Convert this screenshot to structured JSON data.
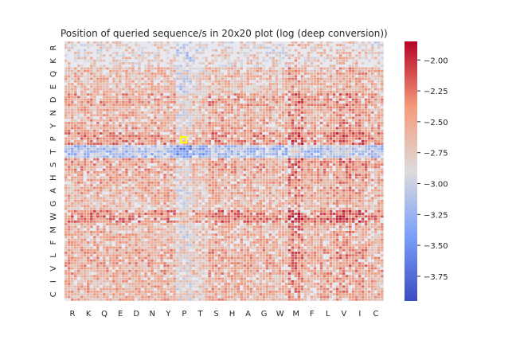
{
  "chart_data": {
    "type": "heatmap",
    "title": "Position of queried sequence/s in 20x20 plot (log (deep conversion))",
    "x_categories": [
      "R",
      "K",
      "Q",
      "E",
      "D",
      "N",
      "Y",
      "P",
      "T",
      "S",
      "H",
      "A",
      "G",
      "W",
      "M",
      "F",
      "L",
      "V",
      "I",
      "C"
    ],
    "y_categories": [
      "R",
      "K",
      "Q",
      "E",
      "D",
      "N",
      "Y",
      "P",
      "T",
      "S",
      "H",
      "A",
      "G",
      "W",
      "M",
      "F",
      "L",
      "V",
      "I",
      "C"
    ],
    "colorbar": {
      "colormap": "coolwarm",
      "range": [
        -3.95,
        -1.85
      ],
      "ticks": [
        -2.0,
        -2.25,
        -2.5,
        -2.75,
        -3.0,
        -3.25,
        -3.5,
        -3.75
      ],
      "tick_labels": [
        "−2.00",
        "−2.25",
        "−2.50",
        "−2.75",
        "−3.00",
        "−3.25",
        "−3.50",
        "−3.75"
      ]
    },
    "row_band_levels": {
      "R": -2.8,
      "K": -2.75,
      "Q": -2.6,
      "E": -2.65,
      "D": -2.45,
      "N": -2.55,
      "Y": -2.5,
      "P": -2.35,
      "T": -3.15,
      "S": -2.45,
      "H": -2.5,
      "A": -2.55,
      "G": -2.6,
      "W": -2.3,
      "M": -2.55,
      "F": -2.55,
      "L": -2.5,
      "V": -2.5,
      "I": -2.55,
      "C": -2.55
    },
    "column_band_levels": {
      "R": 0.0,
      "K": 0.0,
      "Q": 0.0,
      "E": 0.0,
      "D": 0.0,
      "N": 0.0,
      "Y": 0.0,
      "P": -0.3,
      "T": -0.15,
      "S": 0.05,
      "H": 0.0,
      "A": 0.0,
      "G": 0.0,
      "W": -0.05,
      "M": 0.2,
      "F": 0.0,
      "L": 0.05,
      "V": 0.15,
      "I": 0.1,
      "C": 0.0
    },
    "highlighted_cell": {
      "x": "P",
      "y": "T",
      "color": "#ffff00"
    },
    "background_color": "#e8e8f0",
    "grid": false
  }
}
